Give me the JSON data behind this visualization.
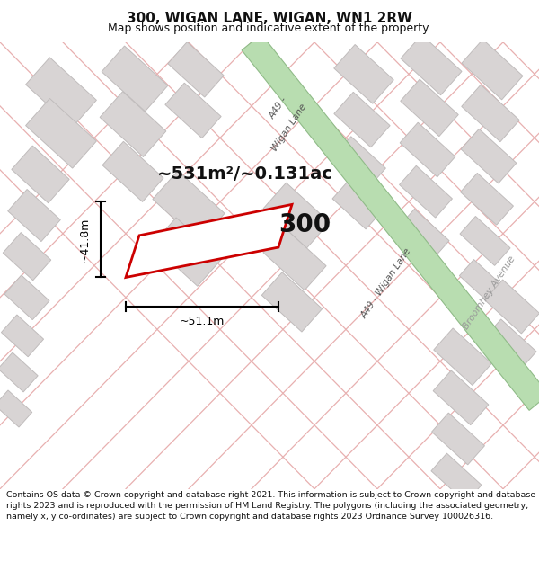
{
  "title": "300, WIGAN LANE, WIGAN, WN1 2RW",
  "subtitle": "Map shows position and indicative extent of the property.",
  "footer": "Contains OS data © Crown copyright and database right 2021. This information is subject to Crown copyright and database rights 2023 and is reproduced with the permission of HM Land Registry. The polygons (including the associated geometry, namely x, y co-ordinates) are subject to Crown copyright and database rights 2023 Ordnance Survey 100026316.",
  "map_bg": "#f5f2f2",
  "road_green_color": "#b8ddb0",
  "road_green_border": "#90bb88",
  "block_color": "#d8d4d4",
  "block_border": "#c0bcbc",
  "property_color": "#ffffff",
  "property_border": "#cc0000",
  "label_area": "~531m²/~0.131ac",
  "label_number": "300",
  "label_width": "~51.1m",
  "label_height": "~41.8m",
  "road_label_upper": "A49 -\nWigan Lane",
  "road_label_lower": "A49 - Wigan Lane",
  "side_road_label": "Broomhey Avenue",
  "pink_line_color": "#e8b0b0",
  "dim_color": "#000000",
  "text_color": "#111111",
  "road_text_color": "#555555",
  "side_road_text_color": "#999999",
  "title_fontsize": 11,
  "subtitle_fontsize": 9,
  "footer_fontsize": 6.8,
  "label_area_fontsize": 14,
  "label_number_fontsize": 20,
  "dim_fontsize": 9,
  "road_label_fontsize": 7.5
}
